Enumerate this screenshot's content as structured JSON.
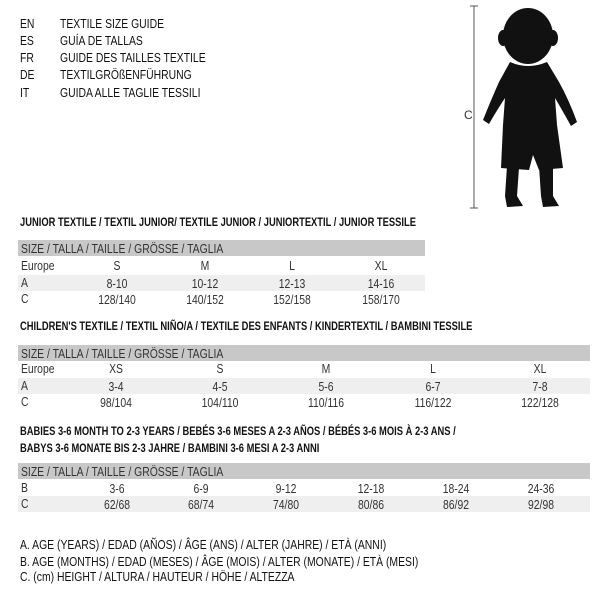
{
  "header": {
    "langs": [
      {
        "code": "EN",
        "title": "TEXTILE SIZE GUIDE"
      },
      {
        "code": "ES",
        "title": "GUÍA DE TALLAS"
      },
      {
        "code": "FR",
        "title": "GUIDE DES TAILLES TEXTILE"
      },
      {
        "code": "DE",
        "title": "TEXTILGRÖßENFÜHRUNG"
      },
      {
        "code": "IT",
        "title": "GUIDA ALLE TAGLIE TESSILI"
      }
    ],
    "measure_label": "C"
  },
  "size_header": "SIZE / TALLA / TAILLE / GRÖSSE / TAGLIA",
  "junior": {
    "heading": "JUNIOR TEXTILE / TEXTIL JUNIOR/ TEXTILE JUNIOR / JUNIORTEXTIL / JUNIOR TESSILE",
    "rows": [
      {
        "label": "Europe",
        "values": [
          "S",
          "M",
          "L",
          "XL"
        ]
      },
      {
        "label": "A",
        "values": [
          "8-10",
          "10-12",
          "12-13",
          "14-16"
        ]
      },
      {
        "label": "C",
        "values": [
          "128/140",
          "140/152",
          "152/158",
          "158/170"
        ]
      }
    ]
  },
  "children": {
    "heading": "CHILDREN'S TEXTILE / TEXTIL NIÑO/A / TEXTILE DES ENFANTS / KINDERTEXTIL / BAMBINI TESSILE",
    "rows": [
      {
        "label": "Europe",
        "values": [
          "XS",
          "S",
          "M",
          "L",
          "XL"
        ]
      },
      {
        "label": "A",
        "values": [
          "3-4",
          "4-5",
          "5-6",
          "6-7",
          "7-8"
        ]
      },
      {
        "label": "C",
        "values": [
          "98/104",
          "104/110",
          "110/116",
          "116/122",
          "122/128"
        ]
      }
    ]
  },
  "babies": {
    "heading1": "BABIES 3-6 MONTH TO 2-3 YEARS / BEBÉS 3-6 MESES A 2-3 AÑOS / BÉBÉS 3-6 MOIS À 2-3 ANS /",
    "heading2": "BABYS 3-6 MONATE BIS 2-3 JAHRE / BAMBINI 3-6 MESI A 2-3 ANNI",
    "rows": [
      {
        "label": "B",
        "values": [
          "3-6",
          "6-9",
          "9-12",
          "12-18",
          "18-24",
          "24-36"
        ]
      },
      {
        "label": "C",
        "values": [
          "62/68",
          "68/74",
          "74/80",
          "80/86",
          "86/92",
          "92/98"
        ]
      }
    ]
  },
  "legend": [
    "A. AGE (YEARS) / EDAD (AÑOS) / ÂGE (ANS) / ALTER (JAHRE) / ETÀ (ANNI)",
    "B. AGE (MONTHS) / EDAD (MESES) / ÂGE (MOIS) / ALTER (MONATE) / ETÀ (MESI)",
    "C. (cm) HEIGHT / ALTURA / HAUTEUR / HÖHE / ALTEZZA"
  ]
}
